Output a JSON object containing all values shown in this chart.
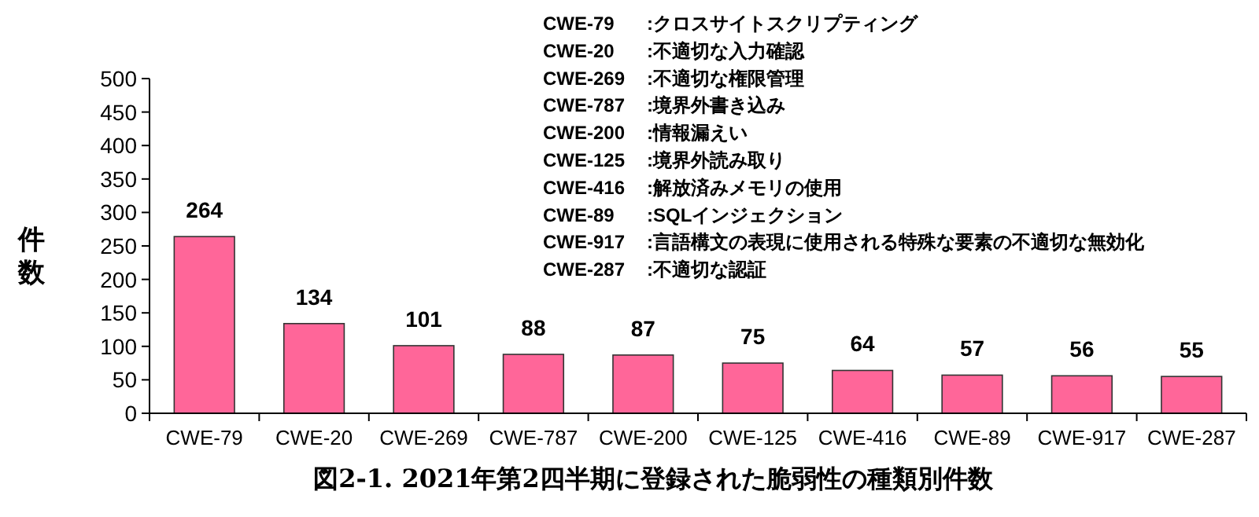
{
  "chart_data": {
    "type": "bar",
    "title": "図2-1. 2021年第2四半期に登録された脆弱性の種類別件数",
    "ylabel": "件数",
    "categories": [
      "CWE-79",
      "CWE-20",
      "CWE-269",
      "CWE-787",
      "CWE-200",
      "CWE-125",
      "CWE-416",
      "CWE-89",
      "CWE-917",
      "CWE-287"
    ],
    "values": [
      264,
      134,
      101,
      88,
      87,
      75,
      64,
      57,
      56,
      55
    ],
    "color": "#ff6699",
    "data_labels": true,
    "ylim": [
      0,
      500
    ],
    "yticks": [
      0,
      50,
      100,
      150,
      200,
      250,
      300,
      350,
      400,
      450,
      500
    ],
    "grid": false,
    "annotations": [
      "CWE-79 :クロスサイトスクリプティング",
      "CWE-20 :不適切な入力確認",
      "CWE-269 :不適切な権限管理",
      "CWE-787 :境界外書き込み",
      "CWE-200 :情報漏えい",
      "CWE-125 :境界外読み取り",
      "CWE-416 :解放済みメモリの使用",
      "CWE-89 :SQLインジェクション",
      "CWE-917 :言語構文の表現に使用される特殊な要素の不適切な無効化",
      "CWE-287 :不適切な認証"
    ]
  }
}
